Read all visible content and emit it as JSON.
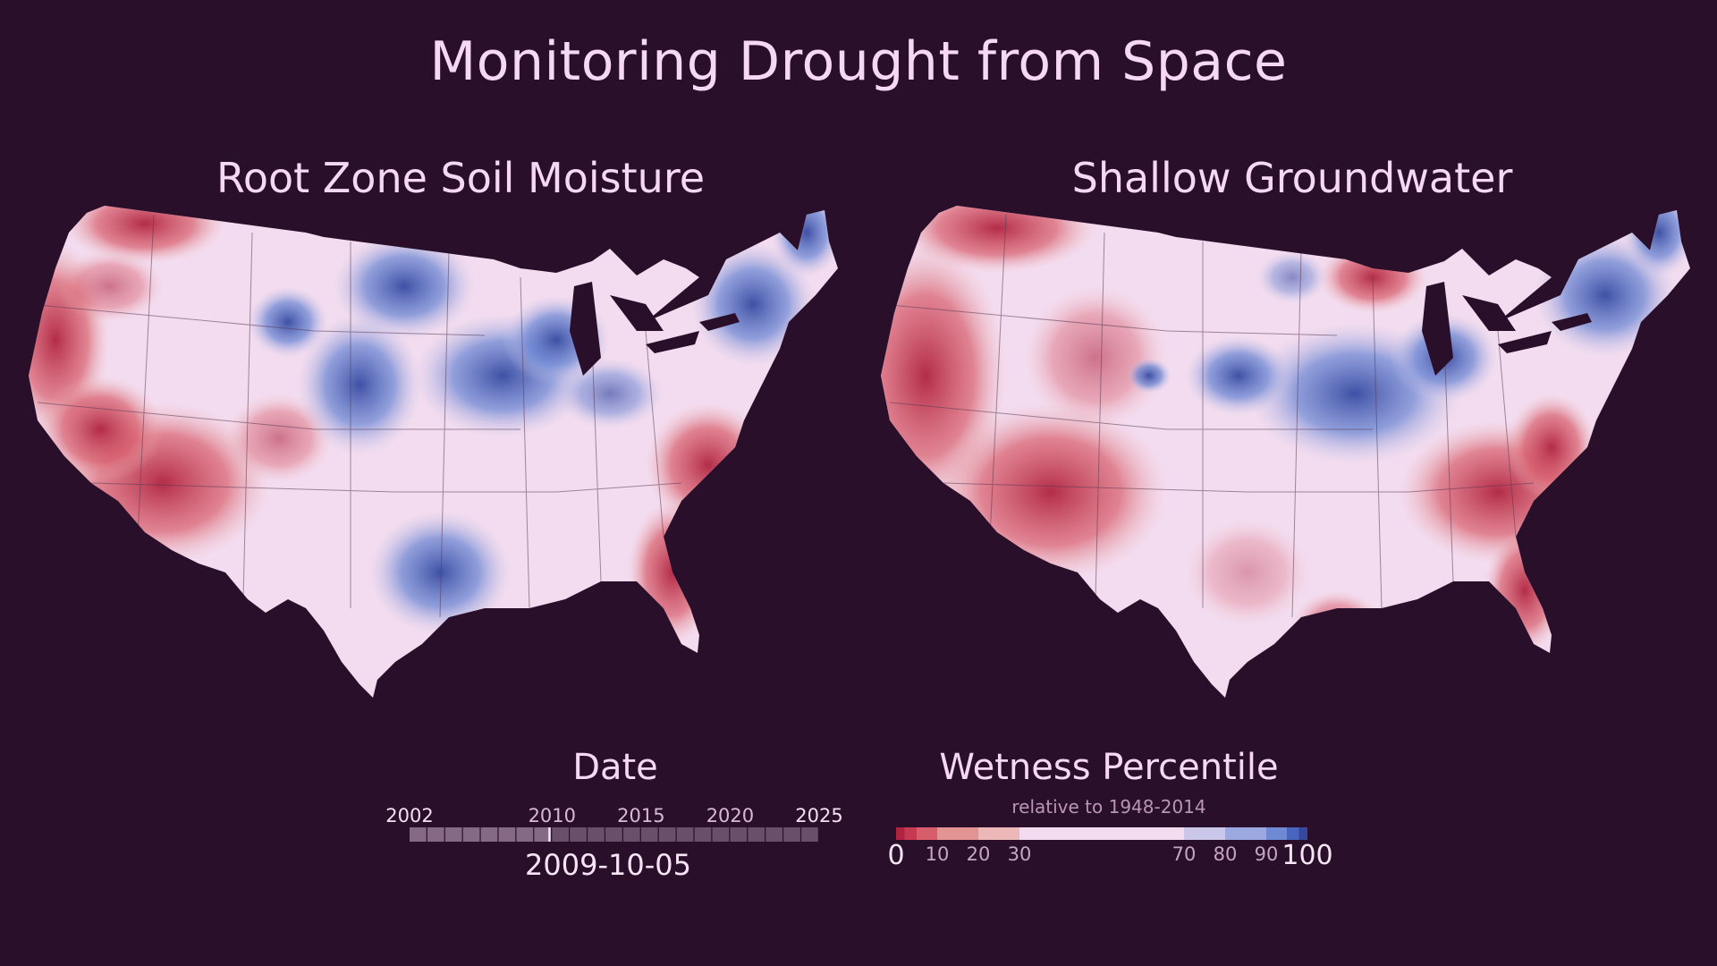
{
  "title": "Monitoring Drought from Space",
  "maps": {
    "left": {
      "title": "Root Zone Soil Moisture"
    },
    "right": {
      "title": "Shallow Groundwater"
    }
  },
  "date": {
    "heading": "Date",
    "ticks": [
      "2002",
      "2010",
      "2015",
      "2020",
      "2025"
    ],
    "start_year": 2002,
    "end_year": 2025,
    "current": "2009-10-05",
    "current_fraction": 0.341
  },
  "legend": {
    "heading": "Wetness Percentile",
    "subtitle": "relative to 1948-2014",
    "ticks": [
      "0",
      "10",
      "20",
      "30",
      "70",
      "80",
      "90",
      "100"
    ],
    "classes": [
      {
        "from": 0,
        "to": 2,
        "color": "#b0233f"
      },
      {
        "from": 2,
        "to": 5,
        "color": "#c63a51"
      },
      {
        "from": 5,
        "to": 10,
        "color": "#d85d6b"
      },
      {
        "from": 10,
        "to": 20,
        "color": "#e39392"
      },
      {
        "from": 20,
        "to": 30,
        "color": "#ecb7b7"
      },
      {
        "from": 30,
        "to": 70,
        "color": "#f3dcef"
      },
      {
        "from": 70,
        "to": 80,
        "color": "#cbc7ea"
      },
      {
        "from": 80,
        "to": 90,
        "color": "#9ba9e0"
      },
      {
        "from": 90,
        "to": 95,
        "color": "#6f89d4"
      },
      {
        "from": 95,
        "to": 98,
        "color": "#4866bf"
      },
      {
        "from": 98,
        "to": 100,
        "color": "#3549a1"
      }
    ]
  },
  "colors": {
    "background": "#2a0f2b",
    "text": "#f6d8f4",
    "land_neutral": "#f3dcef",
    "dry": "#c63a51",
    "wet": "#4866bf"
  }
}
